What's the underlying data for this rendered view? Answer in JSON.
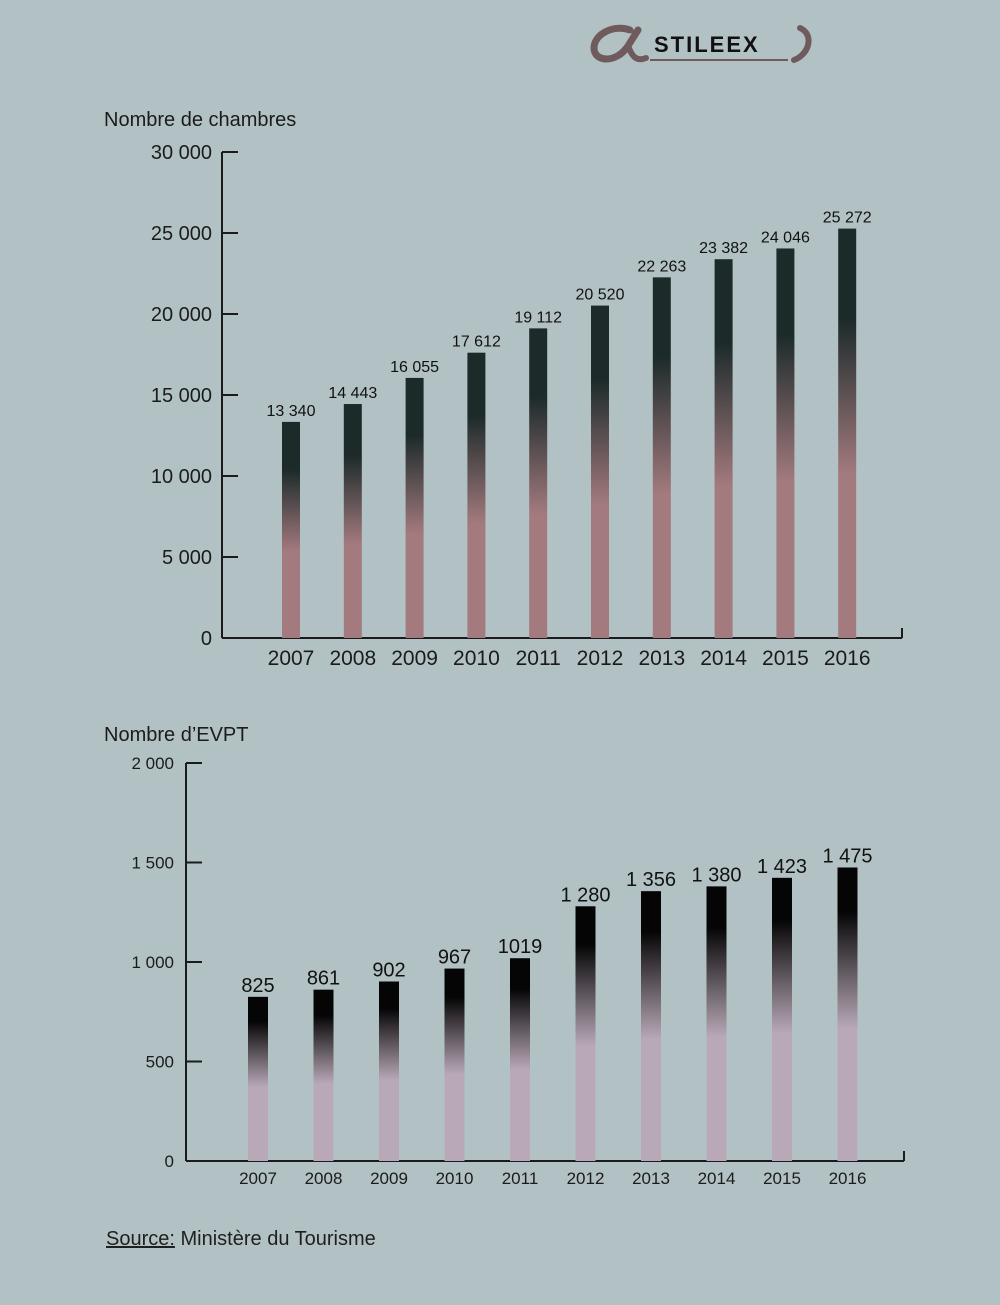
{
  "logo": {
    "text": "STILEEX",
    "icon": "alpha-logo-icon"
  },
  "colors": {
    "background": "#b2c2c4",
    "chart1_top": "#1c2a2a",
    "chart1_bottom": "#a37a7e",
    "chart2_top": "#050505",
    "chart2_bottom": "#b9a9b8"
  },
  "chart_data": [
    {
      "type": "bar",
      "ylabel": "Nombre de chambres",
      "categories": [
        "2007",
        "2008",
        "2009",
        "2010",
        "2011",
        "2012",
        "2013",
        "2014",
        "2015",
        "2016"
      ],
      "values": [
        13340,
        14443,
        16055,
        17612,
        19112,
        20520,
        22263,
        23382,
        24046,
        25272
      ],
      "value_labels": [
        "13 340",
        "14 443",
        "16 055",
        "17 612",
        "19 112",
        "20 520",
        "22 263",
        "23 382",
        "24 046",
        "25 272"
      ],
      "ylim": [
        0,
        30000
      ],
      "yticks": [
        0,
        5000,
        10000,
        15000,
        20000,
        25000,
        30000
      ],
      "ytick_labels": [
        "0",
        "5 000",
        "10 000",
        "15 000",
        "20 000",
        "25 000",
        "30 000"
      ],
      "grid": false
    },
    {
      "type": "bar",
      "ylabel": "Nombre d’EVPT",
      "categories": [
        "2007",
        "2008",
        "2009",
        "2010",
        "2011",
        "2012",
        "2013",
        "2014",
        "2015",
        "2016"
      ],
      "values": [
        825,
        861,
        902,
        967,
        1019,
        1280,
        1356,
        1380,
        1423,
        1475
      ],
      "value_labels": [
        "825",
        "861",
        "902",
        "967",
        "1019",
        "1 280",
        "1 356",
        "1 380",
        "1 423",
        "1 475"
      ],
      "ylim": [
        0,
        2000
      ],
      "yticks": [
        0,
        500,
        1000,
        1500,
        2000
      ],
      "ytick_labels": [
        "0",
        "500",
        "1 000",
        "1 500",
        "2 000"
      ],
      "grid": false
    }
  ],
  "source": {
    "label": "Source:",
    "text": "Ministère du Tourisme"
  }
}
